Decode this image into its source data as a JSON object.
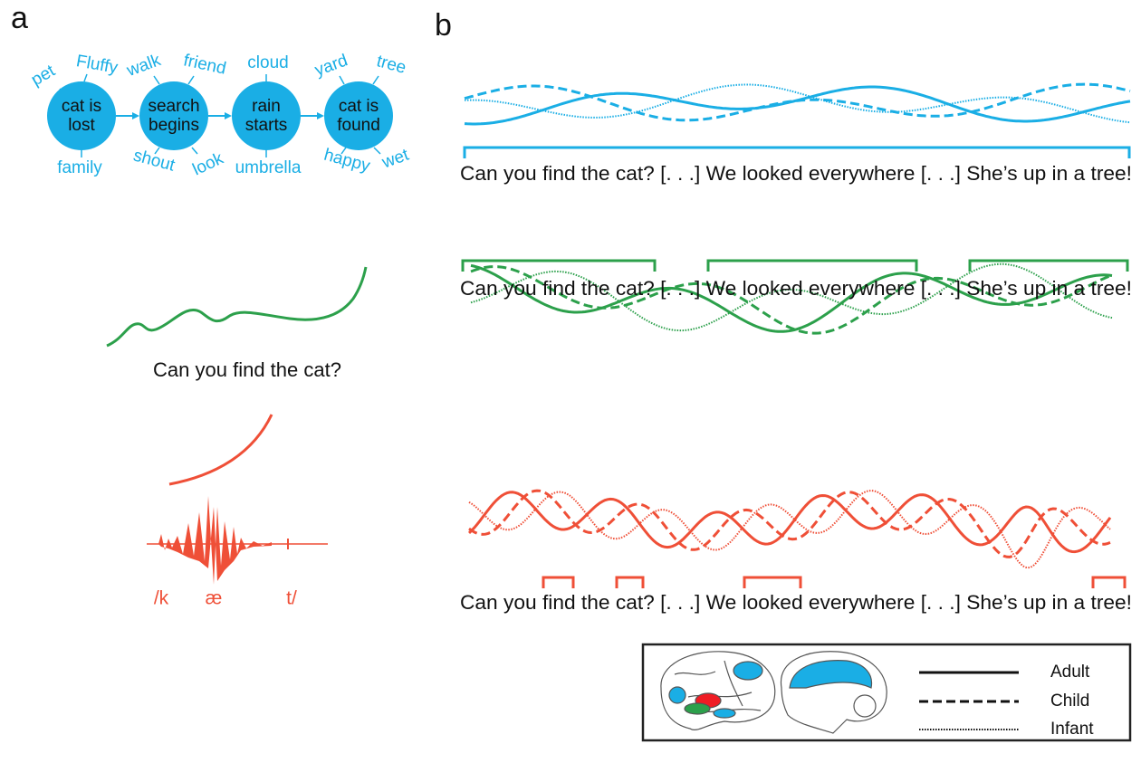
{
  "panel_labels": [
    "a",
    "b"
  ],
  "event_nodes": [
    {
      "label_lines": [
        "cat is",
        "lost"
      ],
      "words": [
        "pet",
        "Fluffy",
        "family"
      ]
    },
    {
      "label_lines": [
        "search",
        "begins"
      ],
      "words": [
        "walk",
        "friend",
        "shout",
        "look"
      ]
    },
    {
      "label_lines": [
        "rain",
        "starts"
      ],
      "words": [
        "cloud",
        "umbrella"
      ]
    },
    {
      "label_lines": [
        "cat is",
        "found"
      ],
      "words": [
        "yard",
        "tree",
        "happy",
        "wet"
      ]
    }
  ],
  "sentence_level": {
    "text": "Can you find the cat?"
  },
  "phonemes": [
    "/k",
    "æ",
    "t/"
  ],
  "story_rows": [
    {
      "text": "Can you find the cat? [. . .] We looked everywhere [. . .] She’s up in a tree!"
    },
    {
      "text": "Can you find the cat? [. . .] We looked everywhere [. . .] She’s up in a tree!"
    },
    {
      "text": "Can you find the cat? [. . .] We looked everywhere [. . .] She’s up in a tree!"
    }
  ],
  "legend": [
    "Adult",
    "Child",
    "Infant"
  ]
}
